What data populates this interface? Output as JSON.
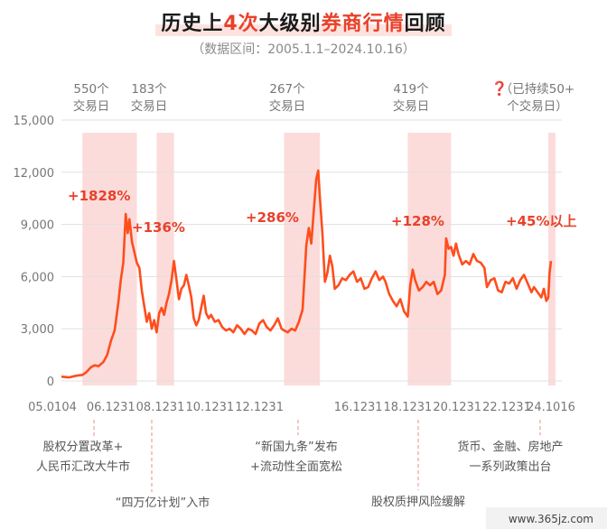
{
  "title": {
    "part1": "历史上",
    "part2": "4次",
    "part3": "大级别",
    "part4": "券商行情",
    "part5": "回顾"
  },
  "subtitle": "（数据区间：2005.1.1–2024.10.16）",
  "colors": {
    "line": "#ff4d1c",
    "band": "#f9d0cf",
    "accent": "#e8412a",
    "grid": "#e0e0e0",
    "dashed": "#f0a7a3"
  },
  "chart_data": {
    "type": "line",
    "title": "",
    "xlabel": "",
    "ylabel": "",
    "ylim": [
      0,
      15000
    ],
    "yticks": [
      "0",
      "3,000",
      "6,000",
      "9,000",
      "12,000",
      "15,000"
    ],
    "xticks": [
      {
        "label": "05.0104",
        "x": 2005.0
      },
      {
        "label": "06.1231",
        "x": 2007.0
      },
      {
        "label": "08.1231",
        "x": 2009.0
      },
      {
        "label": "10.1231",
        "x": 2011.0
      },
      {
        "label": "12.1231",
        "x": 2013.0
      },
      {
        "label": "16.1231",
        "x": 2017.0
      },
      {
        "label": "18.1231",
        "x": 2019.0
      },
      {
        "label": "20.1231",
        "x": 2021.0
      },
      {
        "label": "22.1231",
        "x": 2023.0
      },
      {
        "label": "24.1016",
        "x": 2024.79
      }
    ],
    "xrange": [
      2005.0,
      2024.79
    ],
    "periods": [
      {
        "start": 2005.85,
        "end": 2008.05,
        "top": "550个",
        "bottom": "交易日",
        "gain": "+1828%",
        "note": [
          "股权分置改革+",
          "人民币汇改大牛市"
        ]
      },
      {
        "start": 2008.85,
        "end": 2009.55,
        "top": "183个",
        "bottom": "交易日",
        "gain": "+136%",
        "note": [
          "“四万亿计划”入市"
        ]
      },
      {
        "start": 2014.0,
        "end": 2015.45,
        "top": "267个",
        "bottom": "交易日",
        "gain": "+286%",
        "note": [
          "“新国九条”发布",
          "+流动性全面宽松"
        ]
      },
      {
        "start": 2019.0,
        "end": 2020.75,
        "top": "419个",
        "bottom": "交易日",
        "gain": "+128%",
        "note": [
          "股权质押风险缓解"
        ]
      },
      {
        "start": 2024.68,
        "end": 2024.79,
        "top_mark": "❓",
        "top": "（已持续50+",
        "bottom": "个交易日）",
        "gain": "+45%以上",
        "note": [
          "货币、金融、房地产",
          "一系列政策出台"
        ]
      }
    ],
    "series": [
      {
        "values": [
          [
            2005.0,
            250
          ],
          [
            2005.3,
            200
          ],
          [
            2005.6,
            300
          ],
          [
            2005.85,
            350
          ],
          [
            2006.0,
            500
          ],
          [
            2006.2,
            800
          ],
          [
            2006.35,
            900
          ],
          [
            2006.5,
            850
          ],
          [
            2006.7,
            1100
          ],
          [
            2006.85,
            1500
          ],
          [
            2007.0,
            2300
          ],
          [
            2007.15,
            2900
          ],
          [
            2007.3,
            4500
          ],
          [
            2007.4,
            5800
          ],
          [
            2007.5,
            6800
          ],
          [
            2007.6,
            9600
          ],
          [
            2007.68,
            8500
          ],
          [
            2007.75,
            9300
          ],
          [
            2007.85,
            8000
          ],
          [
            2007.95,
            7400
          ],
          [
            2008.05,
            6800
          ],
          [
            2008.15,
            6500
          ],
          [
            2008.25,
            5200
          ],
          [
            2008.35,
            4300
          ],
          [
            2008.45,
            3400
          ],
          [
            2008.55,
            3900
          ],
          [
            2008.65,
            3000
          ],
          [
            2008.75,
            3500
          ],
          [
            2008.85,
            2800
          ],
          [
            2008.95,
            3900
          ],
          [
            2009.05,
            4200
          ],
          [
            2009.15,
            3800
          ],
          [
            2009.25,
            4500
          ],
          [
            2009.35,
            5000
          ],
          [
            2009.45,
            5800
          ],
          [
            2009.55,
            6900
          ],
          [
            2009.65,
            5800
          ],
          [
            2009.75,
            4700
          ],
          [
            2009.85,
            5300
          ],
          [
            2009.95,
            5500
          ],
          [
            2010.05,
            6100
          ],
          [
            2010.15,
            5500
          ],
          [
            2010.25,
            4800
          ],
          [
            2010.35,
            3600
          ],
          [
            2010.45,
            3200
          ],
          [
            2010.55,
            3500
          ],
          [
            2010.65,
            4200
          ],
          [
            2010.75,
            4900
          ],
          [
            2010.85,
            3900
          ],
          [
            2010.95,
            3600
          ],
          [
            2011.05,
            3800
          ],
          [
            2011.2,
            3400
          ],
          [
            2011.35,
            3500
          ],
          [
            2011.5,
            3100
          ],
          [
            2011.65,
            2900
          ],
          [
            2011.8,
            3000
          ],
          [
            2011.95,
            2800
          ],
          [
            2012.1,
            3200
          ],
          [
            2012.25,
            3000
          ],
          [
            2012.4,
            2700
          ],
          [
            2012.55,
            3000
          ],
          [
            2012.7,
            2900
          ],
          [
            2012.85,
            2700
          ],
          [
            2013.0,
            3300
          ],
          [
            2013.15,
            3500
          ],
          [
            2013.3,
            3100
          ],
          [
            2013.45,
            2900
          ],
          [
            2013.6,
            3200
          ],
          [
            2013.75,
            3600
          ],
          [
            2013.9,
            3000
          ],
          [
            2014.0,
            2900
          ],
          [
            2014.15,
            2800
          ],
          [
            2014.3,
            3000
          ],
          [
            2014.45,
            2900
          ],
          [
            2014.6,
            3400
          ],
          [
            2014.75,
            4100
          ],
          [
            2014.9,
            7800
          ],
          [
            2015.0,
            8800
          ],
          [
            2015.1,
            7900
          ],
          [
            2015.2,
            9800
          ],
          [
            2015.3,
            11600
          ],
          [
            2015.38,
            12100
          ],
          [
            2015.45,
            10500
          ],
          [
            2015.55,
            8500
          ],
          [
            2015.65,
            5700
          ],
          [
            2015.75,
            6200
          ],
          [
            2015.85,
            7200
          ],
          [
            2015.95,
            6600
          ],
          [
            2016.05,
            5300
          ],
          [
            2016.2,
            5500
          ],
          [
            2016.35,
            5900
          ],
          [
            2016.5,
            5800
          ],
          [
            2016.65,
            6100
          ],
          [
            2016.8,
            6300
          ],
          [
            2016.95,
            5700
          ],
          [
            2017.1,
            5900
          ],
          [
            2017.25,
            5300
          ],
          [
            2017.4,
            5400
          ],
          [
            2017.55,
            5900
          ],
          [
            2017.7,
            6300
          ],
          [
            2017.85,
            5800
          ],
          [
            2018.0,
            6000
          ],
          [
            2018.1,
            5700
          ],
          [
            2018.25,
            5000
          ],
          [
            2018.4,
            4600
          ],
          [
            2018.55,
            4300
          ],
          [
            2018.7,
            4700
          ],
          [
            2018.85,
            4000
          ],
          [
            2019.0,
            3700
          ],
          [
            2019.1,
            5500
          ],
          [
            2019.2,
            6400
          ],
          [
            2019.3,
            5800
          ],
          [
            2019.45,
            5200
          ],
          [
            2019.6,
            5400
          ],
          [
            2019.75,
            5700
          ],
          [
            2019.9,
            5500
          ],
          [
            2020.05,
            5700
          ],
          [
            2020.2,
            5000
          ],
          [
            2020.35,
            5200
          ],
          [
            2020.5,
            6100
          ],
          [
            2020.55,
            8200
          ],
          [
            2020.65,
            7600
          ],
          [
            2020.75,
            7700
          ],
          [
            2020.85,
            7200
          ],
          [
            2020.95,
            7900
          ],
          [
            2021.05,
            7300
          ],
          [
            2021.2,
            6700
          ],
          [
            2021.35,
            6900
          ],
          [
            2021.5,
            6700
          ],
          [
            2021.65,
            7300
          ],
          [
            2021.8,
            6900
          ],
          [
            2021.95,
            6800
          ],
          [
            2022.1,
            6500
          ],
          [
            2022.2,
            5400
          ],
          [
            2022.35,
            5800
          ],
          [
            2022.5,
            5900
          ],
          [
            2022.65,
            5200
          ],
          [
            2022.8,
            5100
          ],
          [
            2022.95,
            5700
          ],
          [
            2023.1,
            5600
          ],
          [
            2023.25,
            5900
          ],
          [
            2023.4,
            5300
          ],
          [
            2023.55,
            5800
          ],
          [
            2023.7,
            6100
          ],
          [
            2023.85,
            5600
          ],
          [
            2024.0,
            5100
          ],
          [
            2024.1,
            5400
          ],
          [
            2024.25,
            5100
          ],
          [
            2024.4,
            4800
          ],
          [
            2024.5,
            5300
          ],
          [
            2024.6,
            4600
          ],
          [
            2024.68,
            4800
          ],
          [
            2024.73,
            6200
          ],
          [
            2024.79,
            6900
          ]
        ]
      }
    ]
  },
  "watermark": "www.365jz.com"
}
